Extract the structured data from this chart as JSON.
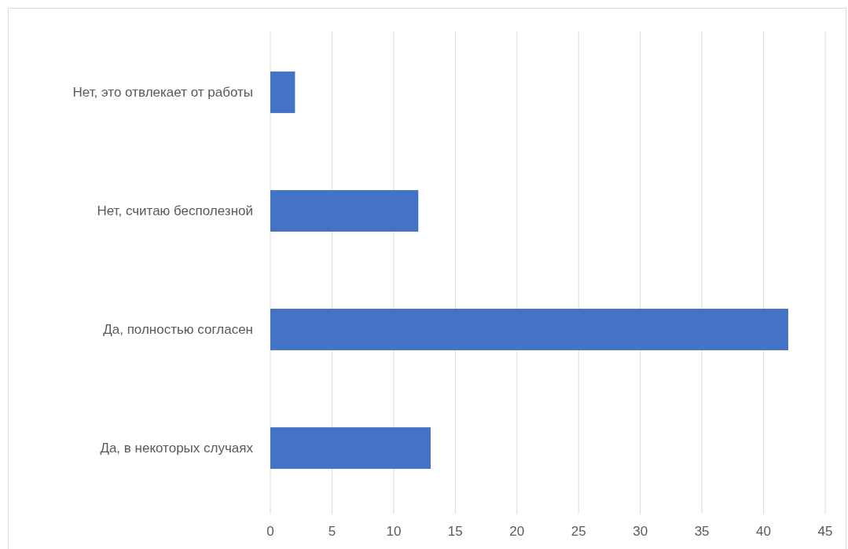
{
  "chart_data": {
    "type": "bar",
    "orientation": "horizontal",
    "categories": [
      "Нет, это отвлекает от работы",
      "Нет, считаю бесполезной",
      "Да, полностью согласен",
      "Да, в некоторых случаях"
    ],
    "values": [
      2,
      12,
      42,
      13
    ],
    "color": "#4472c4",
    "xlim": [
      0,
      45
    ],
    "xticks": [
      0,
      5,
      10,
      15,
      20,
      25,
      30,
      35,
      40,
      45
    ],
    "grid": "x"
  }
}
